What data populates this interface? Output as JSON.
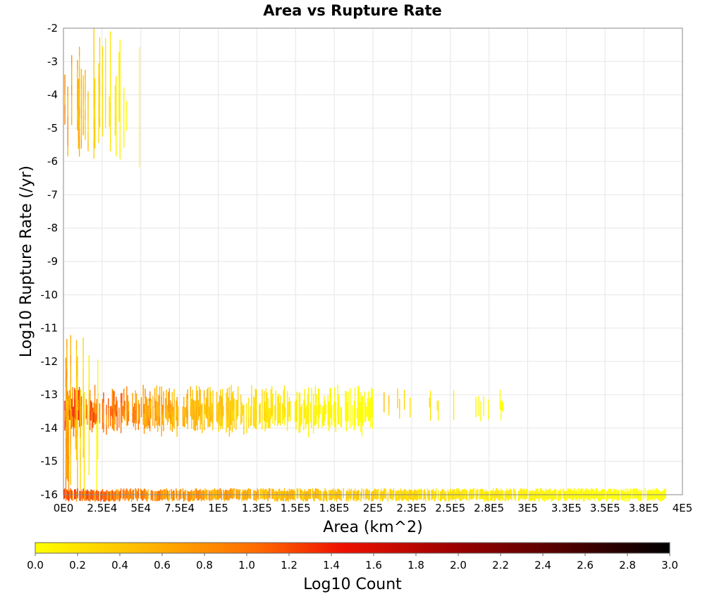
{
  "chart_data": {
    "type": "heatmap",
    "title": "Area vs Rupture Rate",
    "xlabel": "Area (km^2)",
    "ylabel": "Log10 Rupture Rate (/yr)",
    "xlim": [
      0,
      400000
    ],
    "ylim": [
      -16,
      -2
    ],
    "grid": true,
    "x_ticks": [
      "0E0",
      "2.5E4",
      "5E4",
      "7.5E4",
      "1E5",
      "1.3E5",
      "1.5E5",
      "1.8E5",
      "2E5",
      "2.3E5",
      "2.5E5",
      "2.8E5",
      "3E5",
      "3.3E5",
      "3.5E5",
      "3.8E5",
      "4E5"
    ],
    "y_ticks": [
      "-2",
      "-3",
      "-4",
      "-5",
      "-6",
      "-7",
      "-8",
      "-9",
      "-10",
      "-11",
      "-12",
      "-13",
      "-14",
      "-15",
      "-16"
    ],
    "colorbar": {
      "label": "Log10 Count",
      "range": [
        0.0,
        3.0
      ],
      "ticks": [
        "0.0",
        "0.2",
        "0.4",
        "0.6",
        "0.8",
        "1.0",
        "1.2",
        "1.4",
        "1.6",
        "1.8",
        "2.0",
        "2.2",
        "2.4",
        "2.6",
        "2.8",
        "3.0"
      ],
      "stops": [
        {
          "v": 0.0,
          "color": "#ffff00"
        },
        {
          "v": 0.55,
          "color": "#ffb300"
        },
        {
          "v": 1.05,
          "color": "#ff6a00"
        },
        {
          "v": 1.45,
          "color": "#ee1100"
        },
        {
          "v": 2.0,
          "color": "#990000"
        },
        {
          "v": 2.5,
          "color": "#500000"
        },
        {
          "v": 3.0,
          "color": "#000000"
        }
      ]
    },
    "clusters": [
      {
        "region": "high-rate, small area",
        "x_range": [
          0,
          50000
        ],
        "y_range": [
          -6,
          -2
        ],
        "log10_count_range": [
          0.0,
          1.0
        ]
      },
      {
        "region": "main band",
        "x_range": [
          0,
          200000
        ],
        "y_range": [
          -14,
          -12.7
        ],
        "log10_count_range": [
          0.0,
          1.6
        ]
      },
      {
        "region": "sparse extension",
        "x_range": [
          200000,
          290000
        ],
        "y_range": [
          -13.6,
          -12.8
        ],
        "log10_count_range": [
          0.0,
          0.6
        ]
      },
      {
        "region": "small-area scatter",
        "x_range": [
          0,
          25000
        ],
        "y_range": [
          -16,
          -11.2
        ],
        "log10_count_range": [
          0.0,
          1.0
        ]
      },
      {
        "region": "floor band",
        "x_range": [
          0,
          390000
        ],
        "y_range": [
          -16,
          -15.8
        ],
        "log10_count_range": [
          0.0,
          1.4
        ]
      }
    ]
  }
}
